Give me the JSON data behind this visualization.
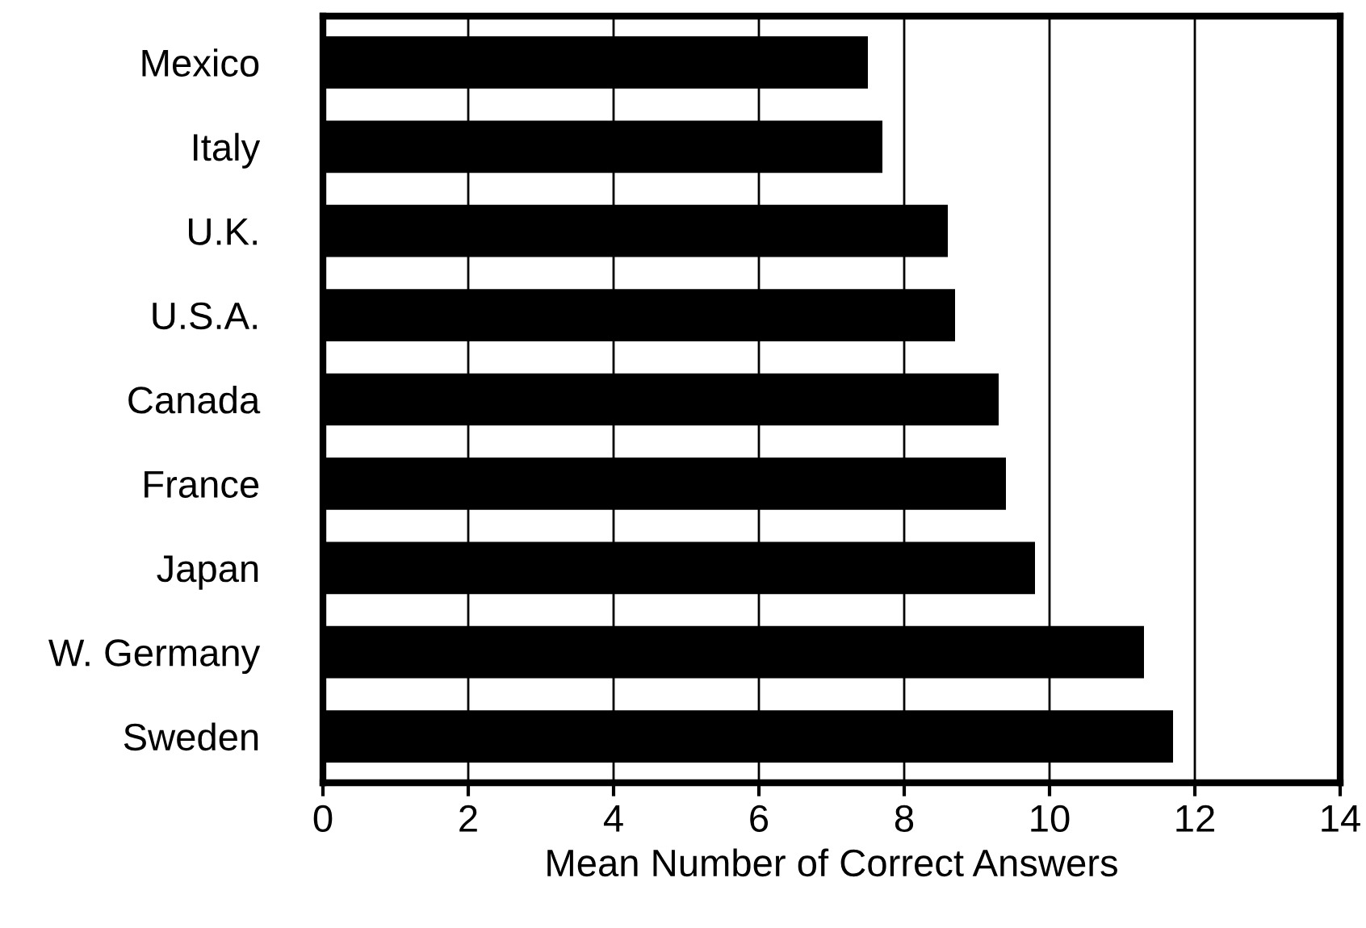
{
  "chart_data": {
    "type": "bar",
    "orientation": "horizontal",
    "xlabel": "Mean Number of Correct Answers",
    "categories": [
      "Mexico",
      "Italy",
      "U.K.",
      "U.S.A.",
      "Canada",
      "France",
      "Japan",
      "W. Germany",
      "Sweden"
    ],
    "values": [
      7.5,
      7.7,
      8.6,
      8.7,
      9.3,
      9.4,
      9.8,
      11.3,
      11.7
    ],
    "color": "#000000",
    "xlim": [
      0,
      14
    ],
    "xticks": [
      0,
      2,
      4,
      6,
      8,
      10,
      12,
      14
    ],
    "grid": "x"
  }
}
